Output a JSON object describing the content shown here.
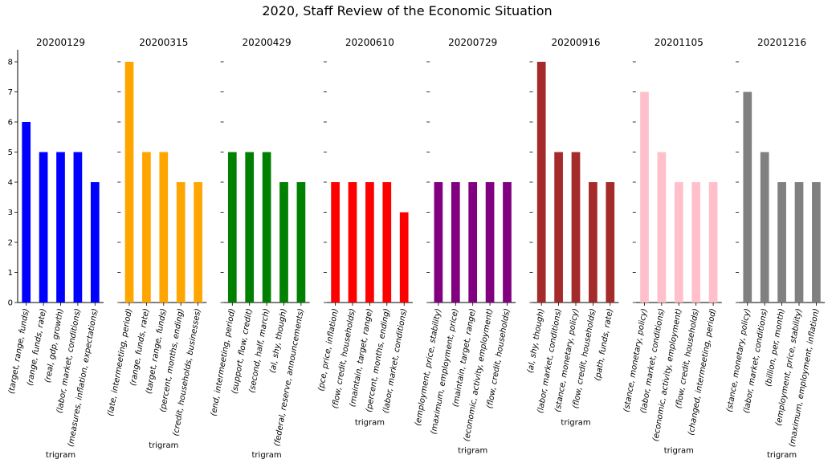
{
  "title": "2020, Staff Review of the Economic Situation",
  "chart_data": {
    "type": "bar",
    "title": "2020, Staff Review of the Economic Situation",
    "ylim": [
      0,
      8.4
    ],
    "yticks": [
      0,
      1,
      2,
      3,
      4,
      5,
      6,
      7,
      8
    ],
    "grid": false,
    "legend": "none",
    "panels": [
      {
        "title": "20200129",
        "xlabel": "trigram",
        "color": "#0000ff",
        "categories": [
          "(target, range, funds)",
          "(range, funds, rate)",
          "(real, gdp, growth)",
          "(labor, market, conditions)",
          "(measures, inflation, expectations)"
        ],
        "values": [
          6,
          5,
          5,
          5,
          4
        ]
      },
      {
        "title": "20200315",
        "xlabel": "trigram",
        "color": "#ffa500",
        "categories": [
          "(late, intermeeting, period)",
          "(range, funds, rate)",
          "(target, range, funds)",
          "(percent, months, ending)",
          "(credit, households, businesses)"
        ],
        "values": [
          8,
          5,
          5,
          4,
          4
        ]
      },
      {
        "title": "20200429",
        "xlabel": "trigram",
        "color": "#008000",
        "categories": [
          "(end, intermeeting, period)",
          "(support, flow, credit)",
          "(second, half, march)",
          "(al, shy, though)",
          "(federal, reserve, announcements)"
        ],
        "values": [
          5,
          5,
          5,
          4,
          4
        ]
      },
      {
        "title": "20200610",
        "xlabel": "trigram",
        "color": "#ff0000",
        "categories": [
          "(pce, price, inflation)",
          "(flow, credit, households)",
          "(maintain, target, range)",
          "(percent, months, ending)",
          "(labor, market, conditions)"
        ],
        "values": [
          4,
          4,
          4,
          4,
          3
        ]
      },
      {
        "title": "20200729",
        "xlabel": "trigram",
        "color": "#800080",
        "categories": [
          "(employment, price, stability)",
          "(maximum, employment, price)",
          "(maintain, target, range)",
          "(economic, activity, employment)",
          "(flow, credit, households)"
        ],
        "values": [
          4,
          4,
          4,
          4,
          4
        ]
      },
      {
        "title": "20200916",
        "xlabel": "trigram",
        "color": "#a52a2a",
        "categories": [
          "(al, shy, though)",
          "(labor, market, conditions)",
          "(stance, monetary, policy)",
          "(flow, credit, households)",
          "(path, funds, rate)"
        ],
        "values": [
          8,
          5,
          5,
          4,
          4
        ]
      },
      {
        "title": "20201105",
        "xlabel": "trigram",
        "color": "#ffc0cb",
        "categories": [
          "(stance, monetary, policy)",
          "(labor, market, conditions)",
          "(economic, activity, employment)",
          "(flow, credit, households)",
          "(changed, intermeeting, period)"
        ],
        "values": [
          7,
          5,
          4,
          4,
          4
        ]
      },
      {
        "title": "20201216",
        "xlabel": "trigram",
        "color": "#808080",
        "categories": [
          "(stance, monetary, policy)",
          "(labor, market, conditions)",
          "(billion, per, month)",
          "(employment, price, stability)",
          "(maximum, employment, inflation)"
        ],
        "values": [
          7,
          5,
          4,
          4,
          4
        ]
      }
    ]
  }
}
